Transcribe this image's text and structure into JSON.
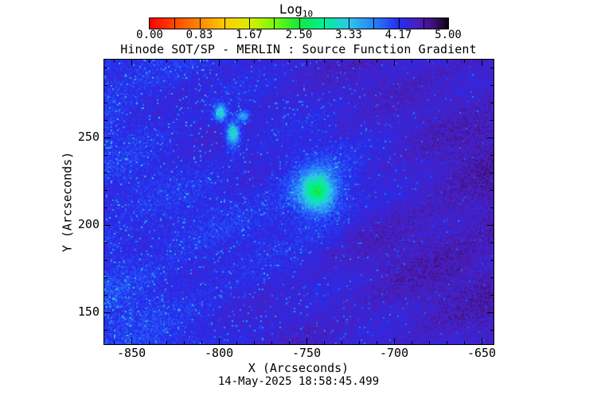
{
  "window": {
    "background": "#ffffff"
  },
  "chart_data": {
    "type": "heatmap",
    "title": "Hinode SOT/SP - MERLIN : Source Function Gradient",
    "xlabel": "X (Arcseconds)",
    "ylabel": "Y (Arcseconds)",
    "timestamp": "14-May-2025 18:58:45.499",
    "xlim": [
      -865.5,
      -643.2
    ],
    "ylim": [
      131.8,
      294.5
    ],
    "x_major_ticks": [
      -850,
      -800,
      -750,
      -700,
      -650
    ],
    "x_minor_step": 10,
    "y_major_ticks": [
      150,
      200,
      250
    ],
    "y_minor_step": 10,
    "grid": false,
    "colorbar": {
      "title_main": "Log",
      "title_sub": "10",
      "range": [
        0,
        5
      ],
      "tick_labels": [
        "0.00",
        "0.83",
        "1.67",
        "2.50",
        "3.33",
        "4.17",
        "5.00"
      ],
      "minor_divisions": 12,
      "stops": [
        [
          0.0,
          255,
          0,
          0
        ],
        [
          0.42,
          255,
          72,
          0
        ],
        [
          0.83,
          255,
          134,
          0
        ],
        [
          1.25,
          255,
          202,
          0
        ],
        [
          1.67,
          218,
          240,
          0
        ],
        [
          2.08,
          120,
          250,
          10
        ],
        [
          2.5,
          20,
          232,
          60
        ],
        [
          2.92,
          0,
          240,
          150
        ],
        [
          3.33,
          45,
          200,
          232
        ],
        [
          3.75,
          40,
          130,
          250
        ],
        [
          4.17,
          35,
          45,
          240
        ],
        [
          4.5,
          76,
          30,
          190
        ],
        [
          4.75,
          62,
          16,
          118
        ],
        [
          5.0,
          14,
          2,
          20
        ]
      ]
    },
    "background_field": {
      "left_log10": 4.14,
      "right_log10": 4.5,
      "noise_amplitude": 0.16,
      "speckle_min_log10": 3.4,
      "description": "noisy blue field, brighter blue with cyan speckles on west side, darker purple mottling toward east"
    },
    "features": [
      {
        "name": "bright-pore-main",
        "x": -744,
        "y": 219,
        "rx": 6.0,
        "ry": 7.0,
        "depth": 1.2,
        "halo_r": 14,
        "halo_depth": 0.5
      },
      {
        "name": "bright-pore-west",
        "x": -799,
        "y": 264,
        "rx": 2.4,
        "ry": 3.2,
        "depth": 1.1
      },
      {
        "name": "bright-pore-north",
        "x": -786,
        "y": 262,
        "rx": 2.4,
        "ry": 2.4,
        "depth": 0.8
      },
      {
        "name": "bright-pore-south",
        "x": -792,
        "y": 252,
        "rx": 2.6,
        "ry": 4.5,
        "depth": 1.25
      }
    ]
  }
}
